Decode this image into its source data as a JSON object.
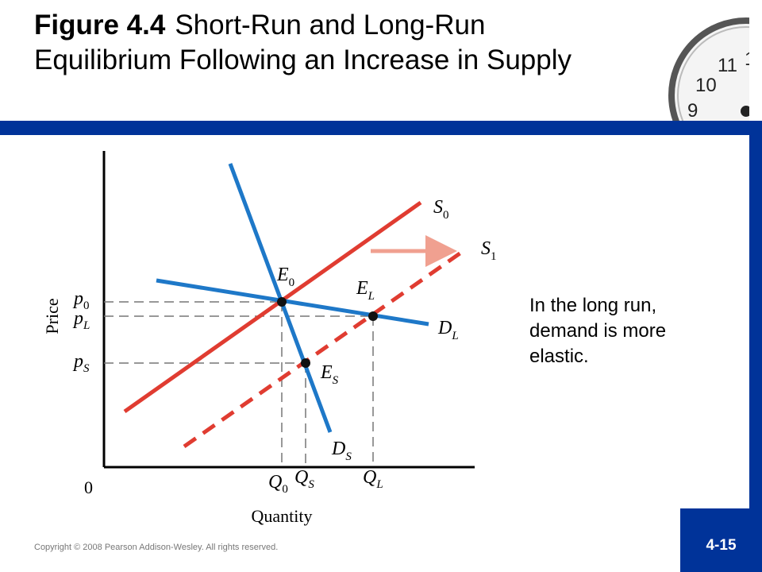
{
  "title": {
    "figure": "Figure 4.4",
    "text": "Short-Run and Long-Run Equilibrium Following an Increase in Supply"
  },
  "note": "In the long run, demand is more elastic.",
  "copyright": "Copyright © 2008 Pearson Addison-Wesley. All rights reserved.",
  "page_number": "4-15",
  "diagram": {
    "y_axis_label": "Price",
    "x_axis_label": "Quantity",
    "origin": "0",
    "curves": {
      "s0": {
        "main": "S",
        "sub": "0"
      },
      "s1": {
        "main": "S",
        "sub": "1"
      },
      "dl": {
        "main": "D",
        "sub": "L"
      },
      "ds": {
        "main": "D",
        "sub": "S"
      }
    },
    "points": {
      "e0": {
        "main": "E",
        "sub": "0"
      },
      "el": {
        "main": "E",
        "sub": "L"
      },
      "es": {
        "main": "E",
        "sub": "S"
      }
    },
    "price_labels": {
      "p0": {
        "main": "p",
        "sub": "0"
      },
      "pl": {
        "main": "p",
        "sub": "L"
      },
      "ps": {
        "main": "p",
        "sub": "S"
      }
    },
    "quantity_labels": {
      "q0": {
        "main": "Q",
        "sub": "0"
      },
      "qs": {
        "main": "Q",
        "sub": "S"
      },
      "ql": {
        "main": "Q",
        "sub": "L"
      }
    },
    "colors": {
      "supply": "#e03c31",
      "demand": "#1e78c8",
      "shift_arrow": "#f0a090"
    }
  }
}
